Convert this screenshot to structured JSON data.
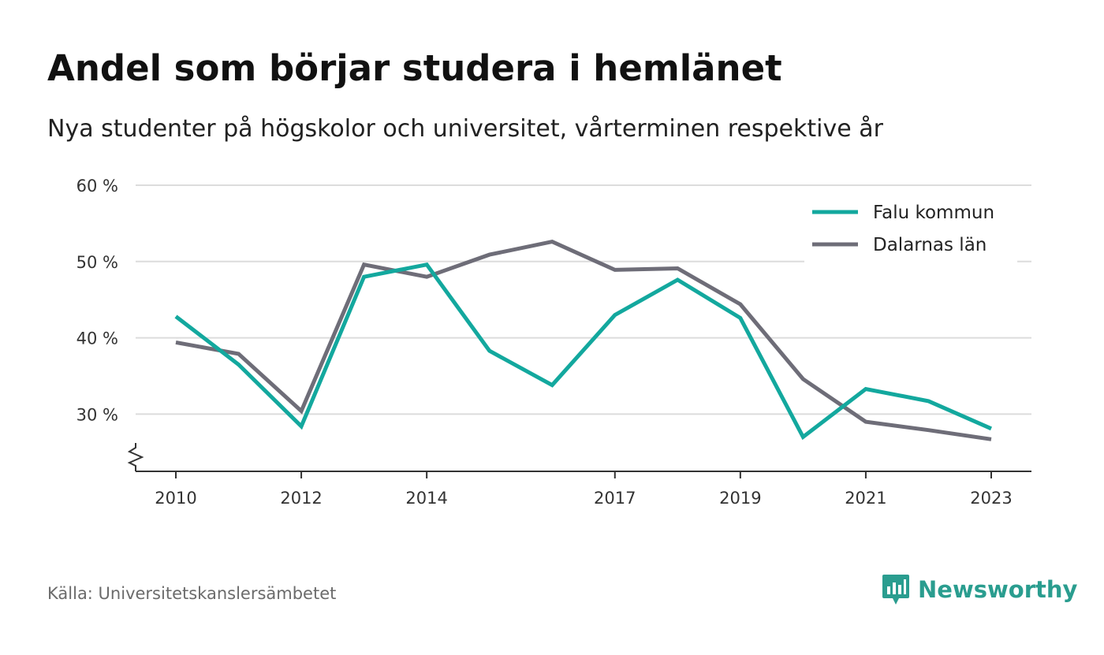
{
  "title": "Andel som börjar studera i hemlänet",
  "subtitle": "Nya studenter på högskolor och universitet, vårterminen respektive år",
  "source": "Källa: Universitetskanslersämbetet",
  "brand": {
    "name": "Newsworthy",
    "logo_icon": "newsworthy-bar-chart-icon",
    "color": "#2a9d8f"
  },
  "chart_data": {
    "type": "line",
    "x": [
      2010,
      2011,
      2012,
      2013,
      2014,
      2015,
      2016,
      2017,
      2018,
      2019,
      2020,
      2021,
      2022,
      2023
    ],
    "x_tick_labels": [
      "2010",
      "2012",
      "2014",
      "2017",
      "2019",
      "2021",
      "2023"
    ],
    "y_ticks": [
      30,
      40,
      50,
      60
    ],
    "y_tick_labels": [
      "30 %",
      "40 %",
      "50 %",
      "60 %"
    ],
    "ylim": [
      22.5,
      60
    ],
    "y_axis_break": true,
    "grid": true,
    "legend_position": "top-right",
    "series": [
      {
        "name": "Falu kommun",
        "color": "#13a89e",
        "values": [
          42.8,
          36.5,
          28.4,
          48.0,
          49.6,
          38.3,
          33.8,
          43.0,
          47.6,
          42.6,
          27.0,
          33.3,
          31.7,
          28.1
        ]
      },
      {
        "name": "Dalarnas län",
        "color": "#6e6d78",
        "values": [
          39.4,
          37.9,
          30.4,
          49.6,
          48.0,
          50.9,
          52.6,
          48.9,
          49.1,
          44.4,
          34.6,
          29.0,
          27.9,
          26.7
        ]
      }
    ]
  }
}
